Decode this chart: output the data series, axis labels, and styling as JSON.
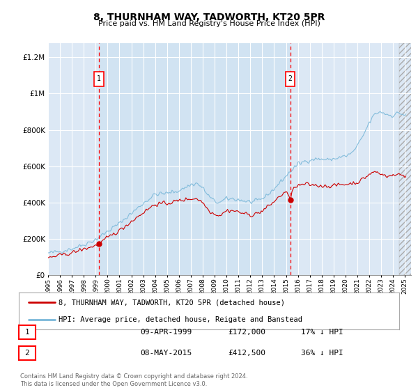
{
  "title": "8, THURNHAM WAY, TADWORTH, KT20 5PR",
  "subtitle": "Price paid vs. HM Land Registry's House Price Index (HPI)",
  "plot_bg_color": "#dce8f5",
  "ylabel_ticks": [
    "£0",
    "£200K",
    "£400K",
    "£600K",
    "£800K",
    "£1M",
    "£1.2M"
  ],
  "ytick_values": [
    0,
    200000,
    400000,
    600000,
    800000,
    1000000,
    1200000
  ],
  "ylim": [
    0,
    1280000
  ],
  "xlim_start": 1995.0,
  "xlim_end": 2025.5,
  "legend_line1": "8, THURNHAM WAY, TADWORTH, KT20 5PR (detached house)",
  "legend_line2": "HPI: Average price, detached house, Reigate and Banstead",
  "line1_color": "#cc0000",
  "line2_color": "#7ab8d9",
  "purchase1_date": 1999.27,
  "purchase1_price": 172000,
  "purchase1_label": "1",
  "purchase2_date": 2015.36,
  "purchase2_price": 412500,
  "purchase2_label": "2",
  "table_row1": [
    "1",
    "09-APR-1999",
    "£172,000",
    "17% ↓ HPI"
  ],
  "table_row2": [
    "2",
    "08-MAY-2015",
    "£412,500",
    "36% ↓ HPI"
  ],
  "footer": "Contains HM Land Registry data © Crown copyright and database right 2024.\nThis data is licensed under the Open Government Licence v3.0."
}
